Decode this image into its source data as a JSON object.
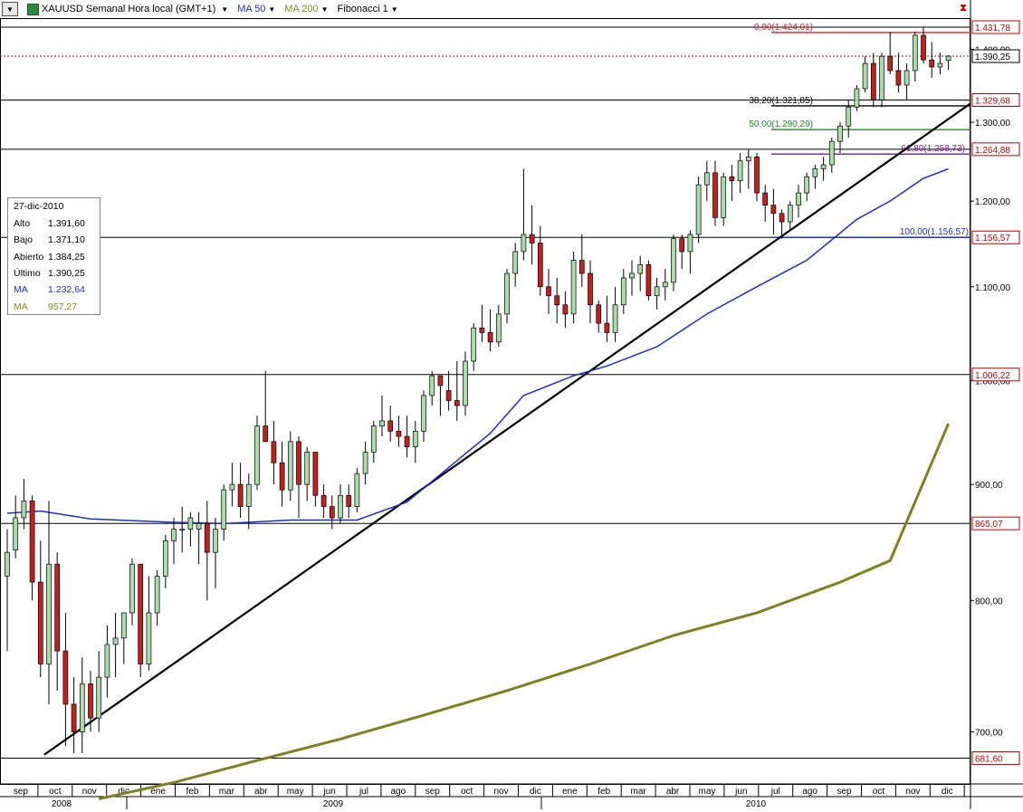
{
  "header": {
    "menu_icon": "chevron-down-icon",
    "symbol_icon": "instrument-icon",
    "title": "XAUUSD Semanal Hora local (GMT+1)",
    "indicators": [
      "MA 50",
      "MA 200",
      "Fibonacci 1"
    ],
    "close_icon": "close-icon"
  },
  "info_box": {
    "date": "27-dic-2010",
    "rows": [
      {
        "label": "Alto",
        "value": "1.391,60"
      },
      {
        "label": "Bajo",
        "value": "1.371,10"
      },
      {
        "label": "Abierto",
        "value": "1.384,25"
      },
      {
        "label": "Último",
        "value": "1.390,25"
      },
      {
        "label": "MA",
        "value": "1.232,64"
      },
      {
        "label": "MA",
        "value": "957,27"
      }
    ]
  },
  "colors": {
    "up": "#a8dca8",
    "down": "#c81e1e",
    "ma50": "#1a2fd0",
    "ma200": "#808020",
    "fib0": "#e02020",
    "fib382": "#000000",
    "fib50": "#1e8c1e",
    "fib618": "#7a1a9a",
    "fib100": "#1a2fd0"
  },
  "chart_data": {
    "type": "candlestick",
    "title": "XAUUSD Semanal Hora local (GMT+1)",
    "y_scale": "log",
    "ylim": [
      664,
      1445
    ],
    "y_ticks": [
      {
        "value": 700,
        "label": "700,00"
      },
      {
        "value": 800,
        "label": "800,00"
      },
      {
        "value": 900,
        "label": "900,00"
      },
      {
        "value": 1000,
        "label": "1.000,00"
      },
      {
        "value": 1100,
        "label": "1.100,00"
      },
      {
        "value": 1200,
        "label": "1.200,00"
      },
      {
        "value": 1300,
        "label": "1.300,00"
      },
      {
        "value": 1400,
        "label": "1.400,00"
      }
    ],
    "x_month_labels": [
      "sep",
      "oct",
      "nov",
      "dic",
      "ene",
      "feb",
      "mar",
      "abr",
      "may",
      "jun",
      "jul",
      "ago",
      "sep",
      "oct",
      "nov",
      "dic",
      "ene",
      "feb",
      "mar",
      "abr",
      "may",
      "jun",
      "jul",
      "ago",
      "sep",
      "oct",
      "nov",
      "dic"
    ],
    "x_year_labels": [
      "2008",
      "2009",
      "2010"
    ],
    "candles_ohlc": [
      [
        820,
        860,
        760,
        840
      ],
      [
        842,
        890,
        835,
        870
      ],
      [
        870,
        905,
        860,
        885
      ],
      [
        885,
        890,
        800,
        815
      ],
      [
        815,
        850,
        740,
        750
      ],
      [
        750,
        885,
        720,
        830
      ],
      [
        830,
        840,
        730,
        760
      ],
      [
        760,
        790,
        690,
        720
      ],
      [
        720,
        740,
        685,
        700
      ],
      [
        700,
        755,
        685,
        735
      ],
      [
        735,
        745,
        700,
        710
      ],
      [
        710,
        760,
        700,
        740
      ],
      [
        740,
        780,
        725,
        765
      ],
      [
        765,
        790,
        740,
        770
      ],
      [
        770,
        785,
        750,
        790
      ],
      [
        790,
        835,
        780,
        830
      ],
      [
        830,
        810,
        740,
        750
      ],
      [
        750,
        820,
        745,
        790
      ],
      [
        790,
        825,
        780,
        820
      ],
      [
        820,
        855,
        810,
        850
      ],
      [
        850,
        870,
        830,
        860
      ],
      [
        860,
        880,
        840,
        860
      ],
      [
        860,
        875,
        845,
        870
      ],
      [
        860,
        875,
        830,
        865
      ],
      [
        865,
        885,
        800,
        840
      ],
      [
        840,
        870,
        810,
        860
      ],
      [
        860,
        900,
        850,
        895
      ],
      [
        895,
        920,
        880,
        900
      ],
      [
        900,
        920,
        870,
        880
      ],
      [
        880,
        910,
        860,
        900
      ],
      [
        900,
        965,
        895,
        955
      ],
      [
        955,
        1010,
        940,
        940
      ],
      [
        940,
        960,
        900,
        920
      ],
      [
        920,
        940,
        880,
        895
      ],
      [
        895,
        950,
        885,
        940
      ],
      [
        940,
        945,
        870,
        900
      ],
      [
        900,
        935,
        885,
        930
      ],
      [
        930,
        910,
        880,
        890
      ],
      [
        890,
        900,
        870,
        880
      ],
      [
        880,
        890,
        860,
        870
      ],
      [
        870,
        900,
        865,
        890
      ],
      [
        890,
        900,
        870,
        880
      ],
      [
        880,
        915,
        875,
        910
      ],
      [
        910,
        940,
        900,
        930
      ],
      [
        930,
        960,
        920,
        955
      ],
      [
        955,
        985,
        945,
        960
      ],
      [
        960,
        975,
        940,
        950
      ],
      [
        950,
        965,
        935,
        945
      ],
      [
        945,
        965,
        925,
        935
      ],
      [
        935,
        960,
        920,
        950
      ],
      [
        950,
        990,
        940,
        985
      ],
      [
        985,
        1010,
        975,
        1005
      ],
      [
        1005,
        1000,
        965,
        995
      ],
      [
        990,
        1010,
        970,
        980
      ],
      [
        980,
        1020,
        960,
        975
      ],
      [
        975,
        1030,
        965,
        1020
      ],
      [
        1020,
        1060,
        1010,
        1055
      ],
      [
        1055,
        1080,
        1040,
        1050
      ],
      [
        1050,
        1075,
        1030,
        1040
      ],
      [
        1040,
        1080,
        1035,
        1070
      ],
      [
        1070,
        1120,
        1060,
        1115
      ],
      [
        1115,
        1150,
        1100,
        1140
      ],
      [
        1140,
        1240,
        1130,
        1160
      ],
      [
        1160,
        1195,
        1125,
        1150
      ],
      [
        1150,
        1170,
        1090,
        1100
      ],
      [
        1100,
        1120,
        1070,
        1090
      ],
      [
        1090,
        1110,
        1060,
        1080
      ],
      [
        1080,
        1095,
        1055,
        1070
      ],
      [
        1070,
        1140,
        1060,
        1130
      ],
      [
        1130,
        1160,
        1100,
        1115
      ],
      [
        1115,
        1130,
        1060,
        1080
      ],
      [
        1080,
        1085,
        1050,
        1060
      ],
      [
        1060,
        1090,
        1040,
        1050
      ],
      [
        1050,
        1100,
        1040,
        1080
      ],
      [
        1080,
        1120,
        1070,
        1110
      ],
      [
        1110,
        1130,
        1090,
        1115
      ],
      [
        1115,
        1135,
        1095,
        1125
      ],
      [
        1125,
        1130,
        1085,
        1090
      ],
      [
        1090,
        1110,
        1075,
        1100
      ],
      [
        1100,
        1120,
        1085,
        1105
      ],
      [
        1105,
        1160,
        1095,
        1155
      ],
      [
        1155,
        1160,
        1120,
        1140
      ],
      [
        1140,
        1165,
        1115,
        1160
      ],
      [
        1160,
        1230,
        1150,
        1220
      ],
      [
        1220,
        1250,
        1200,
        1235
      ],
      [
        1235,
        1250,
        1170,
        1180
      ],
      [
        1180,
        1235,
        1170,
        1230
      ],
      [
        1230,
        1245,
        1200,
        1225
      ],
      [
        1225,
        1260,
        1210,
        1250
      ],
      [
        1250,
        1265,
        1215,
        1255
      ],
      [
        1255,
        1260,
        1200,
        1210
      ],
      [
        1210,
        1220,
        1175,
        1195
      ],
      [
        1195,
        1215,
        1160,
        1185
      ],
      [
        1185,
        1190,
        1155,
        1175
      ],
      [
        1175,
        1200,
        1165,
        1195
      ],
      [
        1195,
        1220,
        1180,
        1210
      ],
      [
        1210,
        1235,
        1200,
        1230
      ],
      [
        1230,
        1245,
        1215,
        1240
      ],
      [
        1240,
        1255,
        1225,
        1245
      ],
      [
        1245,
        1280,
        1235,
        1275
      ],
      [
        1275,
        1300,
        1260,
        1295
      ],
      [
        1295,
        1330,
        1280,
        1320
      ],
      [
        1320,
        1350,
        1315,
        1345
      ],
      [
        1345,
        1390,
        1340,
        1380
      ],
      [
        1380,
        1395,
        1320,
        1330
      ],
      [
        1330,
        1395,
        1320,
        1390
      ],
      [
        1390,
        1425,
        1365,
        1370
      ],
      [
        1370,
        1395,
        1340,
        1350
      ],
      [
        1350,
        1380,
        1330,
        1370
      ],
      [
        1370,
        1425,
        1355,
        1420
      ],
      [
        1420,
        1432,
        1380,
        1385
      ],
      [
        1385,
        1410,
        1360,
        1375
      ],
      [
        1375,
        1395,
        1365,
        1380
      ],
      [
        1384.25,
        1391.6,
        1371.1,
        1390.25
      ]
    ],
    "moving_averages": [
      {
        "name": "MA 50",
        "key": "ma50",
        "points": [
          [
            0,
            874
          ],
          [
            4,
            876
          ],
          [
            10,
            869
          ],
          [
            20,
            866
          ],
          [
            26,
            865
          ],
          [
            34,
            868
          ],
          [
            42,
            868
          ],
          [
            48,
            884
          ],
          [
            54,
            922
          ],
          [
            58,
            948
          ],
          [
            62,
            985
          ],
          [
            68,
            1005
          ],
          [
            72,
            1015
          ],
          [
            78,
            1035
          ],
          [
            84,
            1070
          ],
          [
            90,
            1100
          ],
          [
            96,
            1130
          ],
          [
            102,
            1178
          ],
          [
            106,
            1200
          ],
          [
            110,
            1228
          ],
          [
            113,
            1240
          ]
        ]
      },
      {
        "name": "MA 200",
        "key": "ma200",
        "points": [
          [
            11,
            654
          ],
          [
            20,
            665
          ],
          [
            30,
            680
          ],
          [
            40,
            695
          ],
          [
            50,
            712
          ],
          [
            60,
            730
          ],
          [
            70,
            750
          ],
          [
            80,
            772
          ],
          [
            90,
            790
          ],
          [
            100,
            815
          ],
          [
            106,
            833
          ],
          [
            113,
            957.27
          ]
        ]
      }
    ],
    "horizontal_lines": [
      1431.78,
      1390.25,
      1329.68,
      1264.88,
      1156.57,
      1006.22,
      865.07,
      681.6
    ],
    "price_labels": [
      "1.431,78",
      "1.390,25",
      "1.329,68",
      "1.264,88",
      "1.156,57",
      "1.006,22",
      "865,07",
      "681,60"
    ],
    "fibonacci": [
      {
        "label": "0,00(1.424,01)",
        "price": 1424.01,
        "key": "fib0"
      },
      {
        "label": "38,20(1.321,85)",
        "price": 1321.85,
        "key": "fib382"
      },
      {
        "label": "50,00(1.290,29)",
        "price": 1290.29,
        "key": "fib50"
      },
      {
        "label": "61,80(1.258,73)",
        "price": 1258.73,
        "key": "fib618"
      },
      {
        "label": "100,00(1.156,57)",
        "price": 1156.57,
        "key": "fib100"
      }
    ],
    "trendline": [
      [
        4,
        684
      ],
      [
        115,
        1325
      ]
    ]
  }
}
